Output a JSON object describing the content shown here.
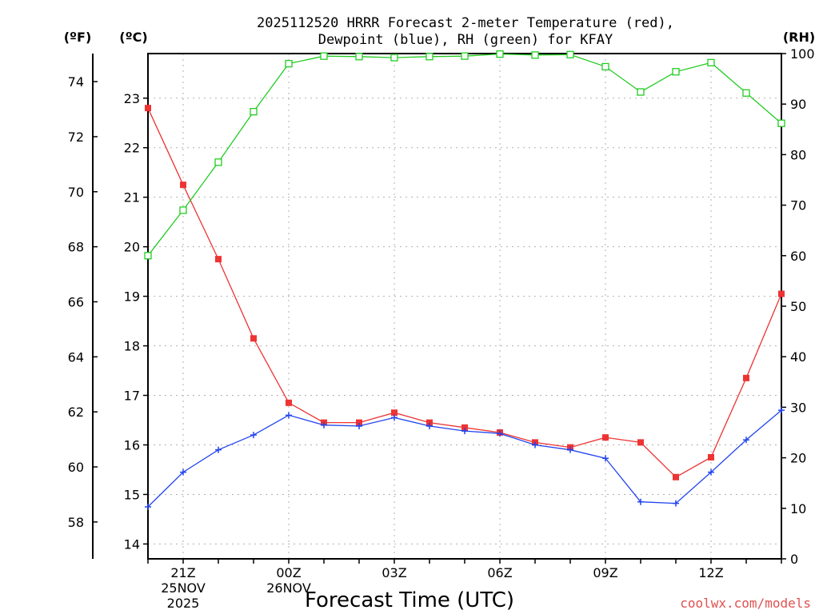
{
  "chart_data": {
    "type": "line",
    "title_line1": "2025112520 HRRR Forecast 2-meter Temperature (red),",
    "title_line2": "Dewpoint (blue), RH (green) for KFAY",
    "xlabel": "Forecast Time (UTC)",
    "credit": "coolwx.com/models",
    "axis_headers": {
      "fahrenheit": "(ºF)",
      "celsius": "(ºC)",
      "rh": "(RH)"
    },
    "x_hours": [
      20,
      21,
      22,
      23,
      24,
      25,
      26,
      27,
      28,
      29,
      30,
      31,
      32,
      33,
      34,
      35,
      36,
      37,
      38
    ],
    "x_ticks": [
      {
        "hour": 21,
        "lines": [
          "21Z",
          "25NOV",
          "2025"
        ]
      },
      {
        "hour": 24,
        "lines": [
          "00Z",
          "26NOV"
        ]
      },
      {
        "hour": 27,
        "lines": [
          "03Z"
        ]
      },
      {
        "hour": 30,
        "lines": [
          "06Z"
        ]
      },
      {
        "hour": 33,
        "lines": [
          "09Z"
        ]
      },
      {
        "hour": 36,
        "lines": [
          "12Z"
        ]
      }
    ],
    "celsius_range": [
      13.7,
      23.9
    ],
    "celsius_ticks": [
      14,
      15,
      16,
      17,
      18,
      19,
      20,
      21,
      22,
      23
    ],
    "fahrenheit_ticks": [
      58,
      60,
      62,
      64,
      66,
      68,
      70,
      72,
      74
    ],
    "rh_range": [
      0,
      100
    ],
    "rh_ticks": [
      0,
      10,
      20,
      30,
      40,
      50,
      60,
      70,
      80,
      90,
      100
    ],
    "series": [
      {
        "name": "Temperature",
        "unit": "C",
        "color": "#ee3333",
        "marker": "filled-square",
        "values": [
          22.8,
          21.25,
          19.75,
          18.15,
          16.85,
          16.45,
          16.45,
          16.65,
          16.45,
          16.35,
          16.25,
          16.05,
          15.95,
          16.15,
          16.05,
          15.35,
          15.75,
          17.35,
          19.05
        ]
      },
      {
        "name": "Dewpoint",
        "unit": "C",
        "color": "#2244ee",
        "marker": "plus",
        "values": [
          14.75,
          15.45,
          15.9,
          16.2,
          16.6,
          16.4,
          16.38,
          16.55,
          16.38,
          16.28,
          16.23,
          16.0,
          15.9,
          15.73,
          14.85,
          14.82,
          15.45,
          16.1,
          16.7
        ]
      },
      {
        "name": "RH",
        "unit": "%",
        "color": "#22cc22",
        "marker": "open-square",
        "values": [
          60,
          69,
          78.5,
          88.5,
          98,
          99.5,
          99.4,
          99.2,
          99.4,
          99.5,
          99.9,
          99.7,
          99.8,
          97.4,
          92.4,
          96.4,
          98.2,
          92.2,
          86.2
        ]
      }
    ]
  }
}
